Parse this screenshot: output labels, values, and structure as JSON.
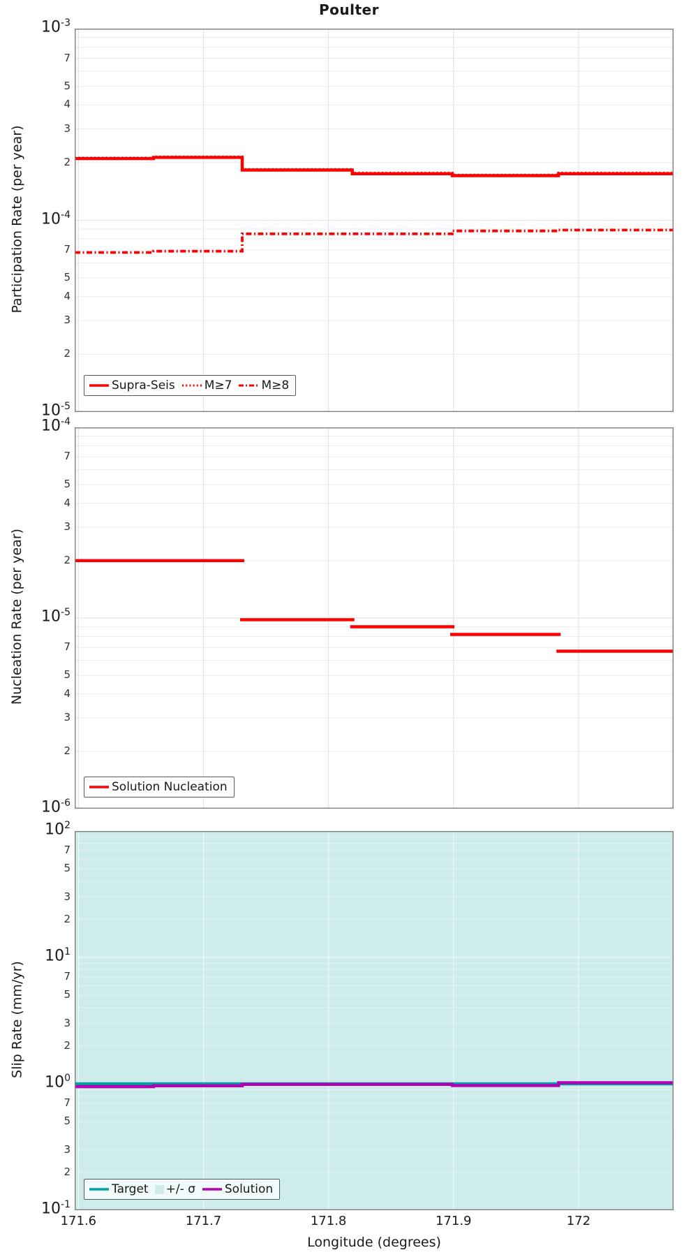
{
  "figure": {
    "title": "Poulter",
    "xlabel": "Longitude (degrees)"
  },
  "colors": {
    "red": "#fe0000",
    "teal": "#00a2a2",
    "purple": "#b400b4",
    "band": "#cdeceb",
    "grid_minor": "#ececec",
    "grid_major": "#dfdfdf",
    "band_grid_major": "rgba(255,255,255,0.75)",
    "band_grid_minor": "rgba(255,255,255,0.45)",
    "border": "#808080"
  },
  "x_axis": {
    "range": [
      171.597,
      172.076
    ],
    "tick_values": [
      171.6,
      171.7,
      171.8,
      171.9,
      172
    ],
    "tick_labels": [
      "171.6",
      "171.7",
      "171.8",
      "171.9",
      "172"
    ]
  },
  "chart_data": [
    {
      "type": "line",
      "subtype": "step",
      "ylabel": "Participation Rate (per year)",
      "yscale": "log",
      "ylim": [
        1e-05,
        0.001
      ],
      "y_ticks": {
        "major_exponents": [
          -3,
          -4,
          -5
        ],
        "minor_labels": [
          "7",
          "5",
          "4",
          "3",
          "2"
        ]
      },
      "x_boundaries": [
        171.597,
        171.66,
        171.731,
        171.819,
        171.899,
        171.984,
        172.076
      ],
      "series": [
        {
          "name": "Supra-Seis",
          "style": "solid",
          "color_key": "red",
          "connected": true,
          "values": [
            0.00021,
            0.000213,
            0.000183,
            0.000175,
            0.000171,
            0.000175
          ]
        },
        {
          "name": "M≥8",
          "style": "dashdot",
          "color_key": "red",
          "connected": true,
          "values": [
            6.8e-05,
            6.9e-05,
            8.5e-05,
            8.5e-05,
            8.8e-05,
            8.9e-05
          ]
        },
        {
          "name": "M≥7",
          "style": "dotted",
          "color_key": "red",
          "connected": true,
          "values": [
            0.000212,
            0.000215,
            0.000185,
            0.000177,
            0.000173,
            0.000177
          ]
        }
      ],
      "legend": {
        "position": "lower left",
        "entries": [
          "Supra-Seis",
          "M≥7",
          "M≥8"
        ]
      }
    },
    {
      "type": "line",
      "subtype": "step",
      "ylabel": "Nucleation Rate (per year)",
      "yscale": "log",
      "ylim": [
        1e-06,
        0.0001
      ],
      "y_ticks": {
        "major_exponents": [
          -4,
          -5,
          -6
        ],
        "minor_labels": [
          "7",
          "5",
          "4",
          "3",
          "2"
        ]
      },
      "x_boundaries": [
        171.597,
        171.66,
        171.731,
        171.819,
        171.899,
        171.984,
        172.076
      ],
      "series": [
        {
          "name": "Solution Nucleation",
          "style": "solid",
          "color_key": "red",
          "connected": false,
          "values": [
            2e-05,
            2e-05,
            9.8e-06,
            9e-06,
            8.2e-06,
            6.7e-06
          ]
        }
      ],
      "legend": {
        "position": "lower left",
        "entries": [
          "Solution Nucleation"
        ]
      }
    },
    {
      "type": "line",
      "subtype": "step",
      "ylabel": "Slip Rate (mm/yr)",
      "yscale": "log",
      "ylim": [
        0.1,
        100
      ],
      "y_ticks": {
        "major_exponents": [
          2,
          1,
          0,
          -1
        ],
        "minor_labels": [
          "7",
          "5",
          "3",
          "2"
        ]
      },
      "x_boundaries": [
        171.597,
        171.66,
        171.731,
        171.819,
        171.899,
        171.984,
        172.076
      ],
      "band": {
        "name": "+/- σ",
        "fill_key": "band",
        "coverage": "entire y-axis range"
      },
      "series": [
        {
          "name": "Target",
          "style": "solid",
          "color_key": "teal",
          "connected": true,
          "values": [
            1.0,
            1.0,
            1.0,
            1.0,
            1.0,
            1.0
          ]
        },
        {
          "name": "Solution",
          "style": "solid",
          "color_key": "purple",
          "connected": true,
          "values": [
            0.95,
            0.965,
            0.99,
            0.99,
            0.97,
            1.02
          ]
        }
      ],
      "legend": {
        "position": "lower left",
        "entries": [
          "Target",
          "+/- σ",
          "Solution"
        ]
      }
    }
  ]
}
